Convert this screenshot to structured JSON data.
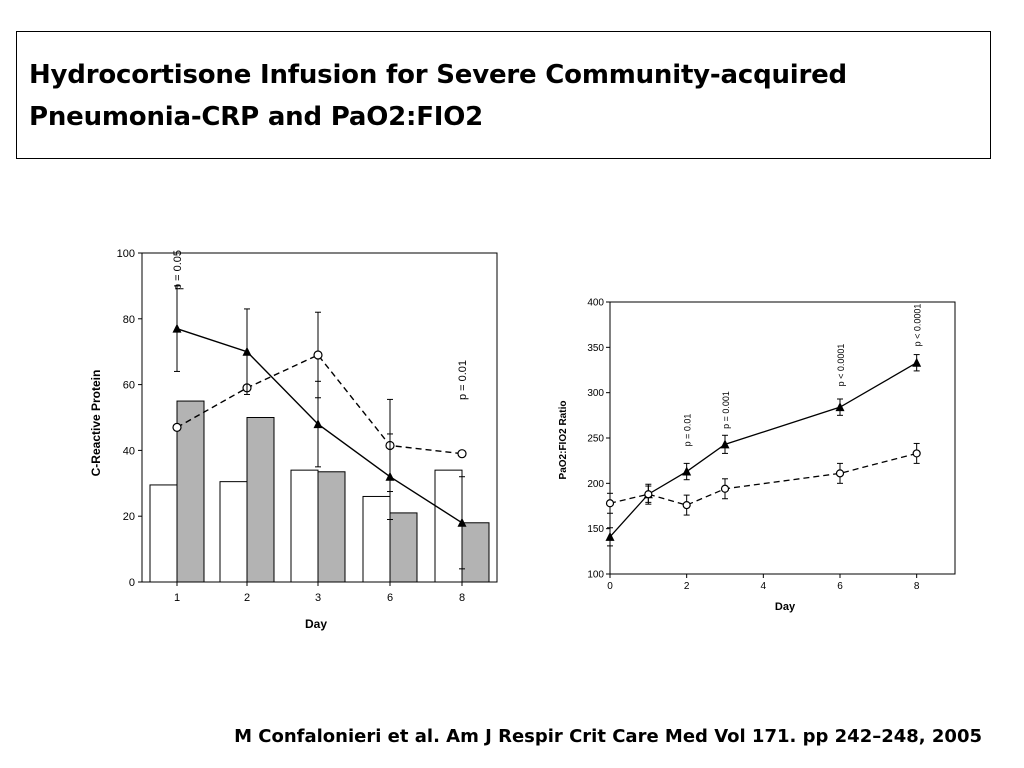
{
  "slide": {
    "title_line1": "Hydrocortisone Infusion for Severe Community-acquired",
    "title_line2": "Pneumonia-CRP and PaO2:FIO2",
    "citation": "M Confalonieri et al. Am J Respir Crit Care Med Vol 171. pp 242–248, 2005"
  },
  "chart_data": [
    {
      "type": "bar",
      "categories": [
        "1",
        "2",
        "3",
        "6",
        "8"
      ],
      "xlabel": "Day",
      "ylabel": "C-Reactive Protein",
      "ylim": [
        0,
        100
      ],
      "yticks": [
        0,
        20,
        40,
        60,
        80,
        100
      ],
      "grid": false,
      "bars": [
        {
          "color": "#ffffff",
          "values": [
            29.5,
            30.5,
            34,
            26,
            34
          ]
        },
        {
          "color": "#b3b3b3",
          "values": [
            55,
            50,
            33.5,
            21,
            18
          ]
        }
      ],
      "lines": [
        {
          "marker": "open-circle",
          "dash": true,
          "values": [
            47,
            59,
            69,
            41.5,
            39
          ],
          "err": [
            null,
            null,
            13,
            14,
            null
          ]
        },
        {
          "marker": "filled-triangle",
          "dash": false,
          "values": [
            77,
            70,
            48,
            32,
            18
          ],
          "err": [
            13,
            13,
            13,
            13,
            14
          ]
        }
      ],
      "annotations": [
        {
          "text": "p = 0.05",
          "category": "1"
        },
        {
          "text": "p = 0.01",
          "category": "8"
        }
      ]
    },
    {
      "type": "line",
      "xlabel": "Day",
      "ylabel": "PaO2:FIO2 Ratio",
      "xlim": [
        0,
        9
      ],
      "ylim": [
        100,
        400
      ],
      "xticks": [
        0,
        2,
        4,
        6,
        8
      ],
      "yticks": [
        100,
        150,
        200,
        250,
        300,
        350,
        400
      ],
      "grid": false,
      "series": [
        {
          "marker": "filled-triangle",
          "dash": false,
          "x": [
            0,
            1,
            2,
            3,
            6,
            8
          ],
          "values": [
            141,
            188,
            213,
            243,
            284,
            333
          ],
          "err": [
            10,
            9,
            9,
            10,
            9,
            9
          ]
        },
        {
          "marker": "open-circle",
          "dash": true,
          "x": [
            0,
            1,
            2,
            3,
            6,
            8
          ],
          "values": [
            178,
            188,
            176,
            194,
            211,
            233
          ],
          "err": [
            11,
            11,
            11,
            11,
            11,
            11
          ]
        }
      ],
      "annotations": [
        {
          "text": "p = 0.01",
          "x": 2
        },
        {
          "text": "p = 0.001",
          "x": 3
        },
        {
          "text": "p < 0.0001",
          "x": 6
        },
        {
          "text": "p < 0.0001",
          "x": 8
        }
      ]
    }
  ]
}
